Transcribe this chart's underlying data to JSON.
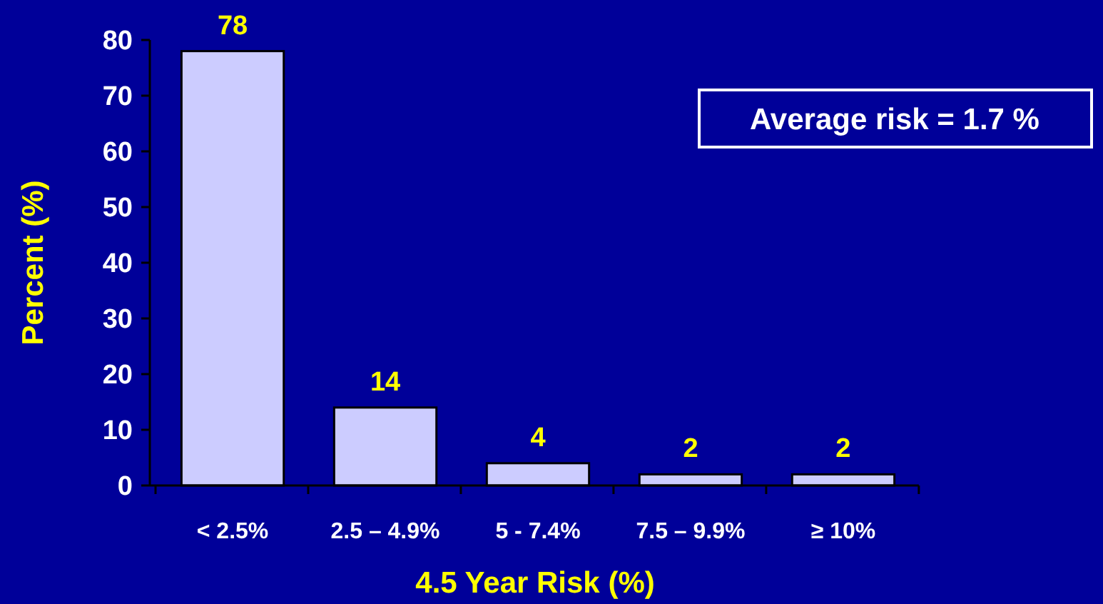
{
  "chart_data": {
    "type": "bar",
    "xlabel": "4.5 Year Risk (%)",
    "ylabel": "Percent (%)",
    "categories": [
      "< 2.5%",
      "2.5 – 4.9%",
      "5 - 7.4%",
      "7.5 – 9.9%",
      "≥ 10%"
    ],
    "values": [
      78,
      14,
      4,
      2,
      2
    ],
    "color": "#ccccff",
    "ylim": [
      0,
      80
    ],
    "yticks": [
      0,
      10,
      20,
      30,
      40,
      50,
      60,
      70,
      80
    ],
    "data_labels": true,
    "annotations": [
      "Average risk = 1.7 %"
    ]
  }
}
